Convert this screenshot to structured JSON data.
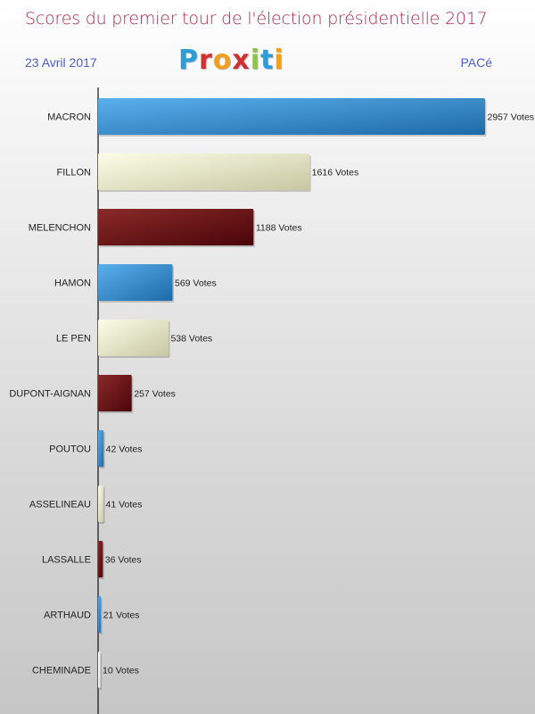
{
  "header": {
    "title": "Scores du premier tour de l'élection présidentielle 2017",
    "date": "23 Avril 2017",
    "place": "PACé",
    "logo": [
      "P",
      "r",
      "o",
      "x",
      "i",
      "t",
      "i"
    ]
  },
  "colors": {
    "blue": [
      "#5ab0ec",
      "#1e6aa8"
    ],
    "cream": [
      "#fdfde8",
      "#c7c7a2"
    ],
    "maroon": [
      "#8a2a2a",
      "#4a0508"
    ],
    "white": [
      "#ffffff",
      "#e6e6e6"
    ]
  },
  "chart_data": {
    "type": "bar",
    "orientation": "horizontal",
    "categories": [
      "MACRON",
      "FILLON",
      "MELENCHON",
      "HAMON",
      "LE PEN",
      "DUPONT-AIGNAN",
      "POUTOU",
      "ASSELINEAU",
      "LASSALLE",
      "ARTHAUD",
      "CHEMINADE"
    ],
    "values": [
      2957,
      1616,
      1188,
      569,
      538,
      257,
      42,
      41,
      36,
      21,
      10
    ],
    "value_labels": [
      "2957 Votes",
      "1616 Votes",
      "1188 Votes",
      "569 Votes",
      "538 Votes",
      "257 Votes",
      "42 Votes",
      "41 Votes",
      "36 Votes",
      "21 Votes",
      "10 Votes"
    ],
    "bar_colors": [
      "blue",
      "cream",
      "maroon",
      "blue",
      "cream",
      "maroon",
      "blue",
      "cream",
      "maroon",
      "blue",
      "white"
    ],
    "xlim": [
      0,
      2957
    ],
    "grid": false
  }
}
